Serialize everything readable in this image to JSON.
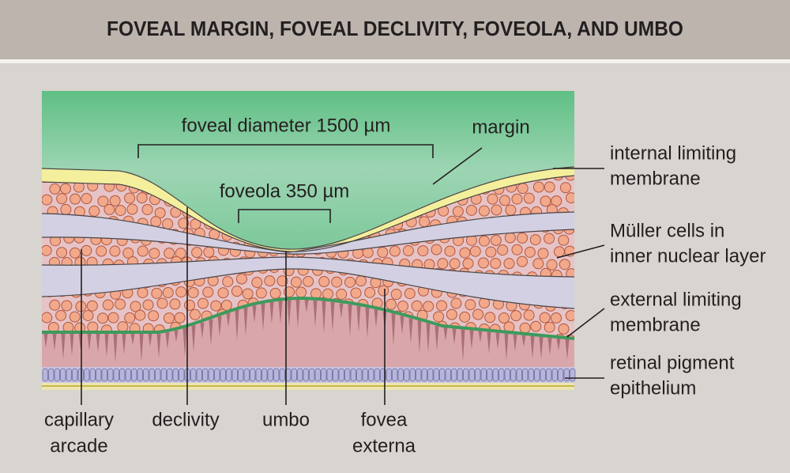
{
  "header": {
    "title": "FOVEAL MARGIN, FOVEAL DECLIVITY, FOVEOLA, AND UMBO"
  },
  "top_labels": {
    "diameter": "foveal diameter 1500 µm",
    "foveola": "foveola 350 µm",
    "margin": "margin"
  },
  "right_labels": [
    {
      "lines": [
        "internal limiting",
        "membrane"
      ]
    },
    {
      "lines": [
        "Müller cells in",
        "inner nuclear layer"
      ]
    },
    {
      "lines": [
        "external limiting",
        "membrane"
      ]
    },
    {
      "lines": [
        "retinal pigment",
        "epithelium"
      ]
    }
  ],
  "bottom_labels": [
    {
      "lines": [
        "capillary",
        "arcade"
      ]
    },
    {
      "lines": [
        "declivity"
      ]
    },
    {
      "lines": [
        "umbo"
      ]
    },
    {
      "lines": [
        "fovea",
        "externa"
      ]
    }
  ]
}
